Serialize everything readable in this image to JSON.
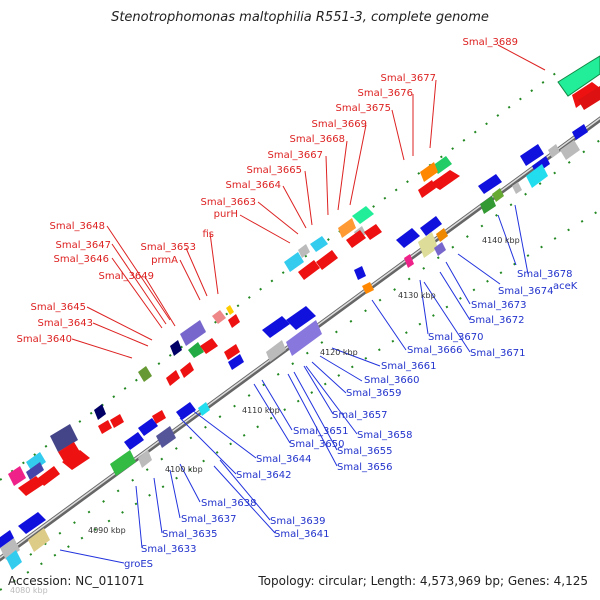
{
  "title": "Stenotrophomonas maltophilia R551-3, complete genome",
  "footer": {
    "accession": "Accession: NC_011071",
    "topology": "Topology: circular; Length: 4,573,969 bp; Genes: 4,125",
    "faint_label": "4080 kbp"
  },
  "ticks": [
    "4090 kbp",
    "4100 kbp",
    "4110 kbp",
    "4120 kbp",
    "4130 kbp",
    "4140 kbp"
  ],
  "labels_red": [
    "Smal_3689",
    "Smal_3677",
    "Smal_3676",
    "Smal_3675",
    "Smal_3669",
    "Smal_3668",
    "Smal_3667",
    "Smal_3665",
    "Smal_3664",
    "Smal_3663",
    "purH",
    "fis",
    "Smal_3653",
    "prmA",
    "Smal_3648",
    "Smal_3647",
    "Smal_3646",
    "Smal_3649",
    "Smal_3645",
    "Smal_3643",
    "Smal_3640"
  ],
  "labels_blue": [
    "Smal_3678",
    "aceK",
    "Smal_3674",
    "Smal_3673",
    "Smal_3672",
    "Smal_3670",
    "Smal_3671",
    "Smal_3666",
    "Smal_3661",
    "Smal_3660",
    "Smal_3659",
    "Smal_3657",
    "Smal_3658",
    "Smal_3651",
    "Smal_3650",
    "Smal_3655",
    "Smal_3656",
    "Smal_3644",
    "Smal_3642",
    "Smal_3638",
    "Smal_3639",
    "Smal_3637",
    "Smal_3641",
    "Smal_3635",
    "Smal_3633",
    "groES"
  ],
  "colors": {
    "forward_strand": "#ee1111",
    "reverse_strand": "#1111dd",
    "backbone": "#888888",
    "tick_dots": "#228822"
  }
}
